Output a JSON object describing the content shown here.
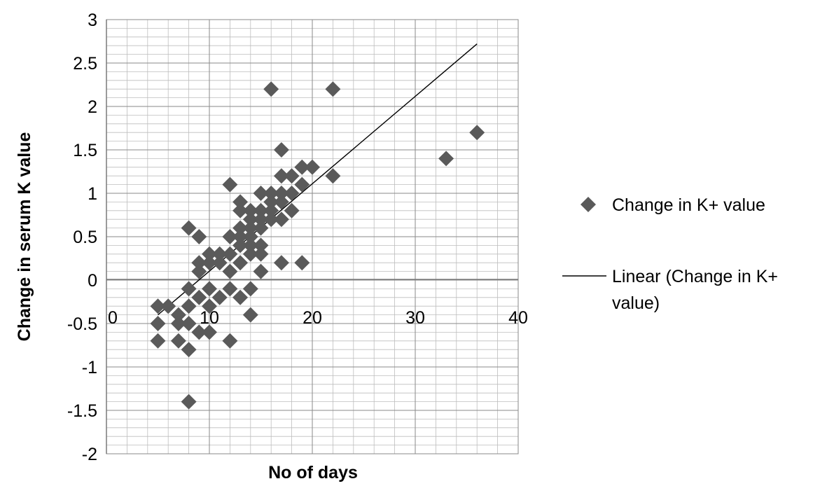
{
  "chart_data": {
    "type": "scatter",
    "title": "",
    "xlabel": "No of days",
    "ylabel": "Change in serum K value",
    "xlim": [
      0,
      40
    ],
    "ylim": [
      -2,
      3
    ],
    "x_ticks": [
      "0",
      "10",
      "20",
      "30",
      "40"
    ],
    "y_ticks": [
      "3",
      "2.5",
      "2",
      "1.5",
      "1",
      "0.5",
      "0",
      "-0.5",
      "-1",
      "-1.5",
      "-2"
    ],
    "x_tick_values": [
      0,
      10,
      20,
      30,
      40
    ],
    "y_tick_values": [
      3,
      2.5,
      2,
      1.5,
      1,
      0.5,
      0,
      -0.5,
      -1,
      -1.5,
      -2
    ],
    "grid": true,
    "legend_position": "right",
    "series": [
      {
        "name": "Change in K+ value",
        "kind": "markers",
        "marker": "diamond",
        "color": "#5a5a5a",
        "points": [
          [
            5,
            -0.3
          ],
          [
            5,
            -0.5
          ],
          [
            5,
            -0.7
          ],
          [
            6,
            -0.3
          ],
          [
            7,
            -0.4
          ],
          [
            7,
            -0.5
          ],
          [
            7,
            -0.7
          ],
          [
            8,
            -0.1
          ],
          [
            8,
            -0.3
          ],
          [
            8,
            -0.5
          ],
          [
            8,
            -0.8
          ],
          [
            8,
            -1.4
          ],
          [
            8,
            0.6
          ],
          [
            9,
            0.2
          ],
          [
            9,
            0.1
          ],
          [
            9,
            0.5
          ],
          [
            9,
            -0.2
          ],
          [
            9,
            -0.6
          ],
          [
            10,
            0.3
          ],
          [
            10,
            0.2
          ],
          [
            10,
            -0.1
          ],
          [
            10,
            -0.3
          ],
          [
            10,
            -0.6
          ],
          [
            11,
            0.3
          ],
          [
            11,
            0.2
          ],
          [
            11,
            -0.2
          ],
          [
            12,
            1.1
          ],
          [
            12,
            0.5
          ],
          [
            12,
            0.3
          ],
          [
            12,
            0.1
          ],
          [
            12,
            -0.1
          ],
          [
            12,
            -0.7
          ],
          [
            13,
            0.9
          ],
          [
            13,
            0.8
          ],
          [
            13,
            0.6
          ],
          [
            13,
            0.5
          ],
          [
            13,
            0.4
          ],
          [
            13,
            0.2
          ],
          [
            13,
            -0.2
          ],
          [
            14,
            0.8
          ],
          [
            14,
            0.7
          ],
          [
            14,
            0.6
          ],
          [
            14,
            0.5
          ],
          [
            14,
            0.4
          ],
          [
            14,
            0.3
          ],
          [
            14,
            -0.1
          ],
          [
            14,
            -0.4
          ],
          [
            15,
            1.0
          ],
          [
            15,
            0.8
          ],
          [
            15,
            0.7
          ],
          [
            15,
            0.6
          ],
          [
            15,
            0.4
          ],
          [
            15,
            0.3
          ],
          [
            15,
            0.1
          ],
          [
            16,
            2.2
          ],
          [
            16,
            1.0
          ],
          [
            16,
            0.9
          ],
          [
            16,
            0.8
          ],
          [
            16,
            0.7
          ],
          [
            17,
            1.5
          ],
          [
            17,
            1.2
          ],
          [
            17,
            1.0
          ],
          [
            17,
            0.9
          ],
          [
            17,
            0.7
          ],
          [
            17,
            0.2
          ],
          [
            18,
            1.2
          ],
          [
            18,
            1.0
          ],
          [
            18,
            0.8
          ],
          [
            19,
            1.3
          ],
          [
            19,
            1.1
          ],
          [
            19,
            0.2
          ],
          [
            20,
            1.3
          ],
          [
            22,
            2.2
          ],
          [
            22,
            1.2
          ],
          [
            33,
            1.4
          ],
          [
            36,
            1.7
          ]
        ]
      },
      {
        "name": "Linear (Change in K+ value)",
        "kind": "line",
        "color": "#000000",
        "points": [
          [
            5,
            -0.4
          ],
          [
            36,
            2.72
          ]
        ]
      }
    ]
  }
}
